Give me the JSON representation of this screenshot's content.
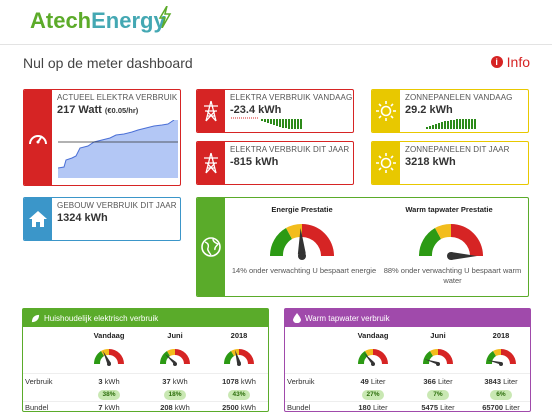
{
  "brand": {
    "part1": "Atech",
    "part2": "Energy"
  },
  "page_title": "Nul op de meter dashboard",
  "info_label": "Info",
  "cards": {
    "actueel": {
      "label": "Actueel Elektra verbruik",
      "value": "217 Watt",
      "sub": "(€0.05/hr)"
    },
    "verbruik_vandaag": {
      "label": "Elektra verbruik vandaag",
      "value": "-23.4 kWh"
    },
    "zon_vandaag": {
      "label": "Zonnepanelen vandaag",
      "value": "29.2 kWh"
    },
    "verbruik_jaar": {
      "label": "Elektra verbruik dit jaar",
      "value": "-815 kWh"
    },
    "zon_jaar": {
      "label": "Zonnepanelen dit jaar",
      "value": "3218 kWh"
    },
    "gebouw": {
      "label": "Gebouw verbruik dit jaar",
      "value": "1324 kWh"
    }
  },
  "prestatie": {
    "energie_title": "Energie Prestatie",
    "energie_note": "14% onder verwachting U bespaart energie",
    "water_title": "Warm tapwater Prestatie",
    "water_note": "88% onder verwachting U bespaart warm water"
  },
  "huishoudelijk": {
    "title": "Huishoudelijk elektrisch verbruik",
    "cols": [
      "Vandaag",
      "Juni",
      "2018"
    ],
    "row1_label": "Verbruik",
    "row2_label": "Bundel",
    "verbruik": [
      {
        "num": "3",
        "unit": "kWh"
      },
      {
        "num": "37",
        "unit": "kWh"
      },
      {
        "num": "1078",
        "unit": "kWh"
      }
    ],
    "badges": [
      "38%",
      "18%",
      "43%"
    ],
    "bundel": [
      {
        "num": "7",
        "unit": "kWh"
      },
      {
        "num": "208",
        "unit": "kWh"
      },
      {
        "num": "2500",
        "unit": "kWh"
      }
    ]
  },
  "tapwater": {
    "title": "Warm tapwater verbruik",
    "cols": [
      "Vandaag",
      "Juni",
      "2018"
    ],
    "row1_label": "Verbruik",
    "row2_label": "Bundel",
    "verbruik": [
      {
        "num": "49",
        "unit": "Liter"
      },
      {
        "num": "366",
        "unit": "Liter"
      },
      {
        "num": "3843",
        "unit": "Liter"
      }
    ],
    "badges": [
      "27%",
      "7%",
      "6%"
    ],
    "bundel": [
      {
        "num": "180",
        "unit": "Liter"
      },
      {
        "num": "5475",
        "unit": "Liter"
      },
      {
        "num": "65700",
        "unit": "Liter"
      }
    ]
  },
  "colors": {
    "red": "#d62424",
    "yellow": "#e8c800",
    "blue": "#3b96c9",
    "green": "#5aab2a",
    "purple": "#a04aab"
  }
}
